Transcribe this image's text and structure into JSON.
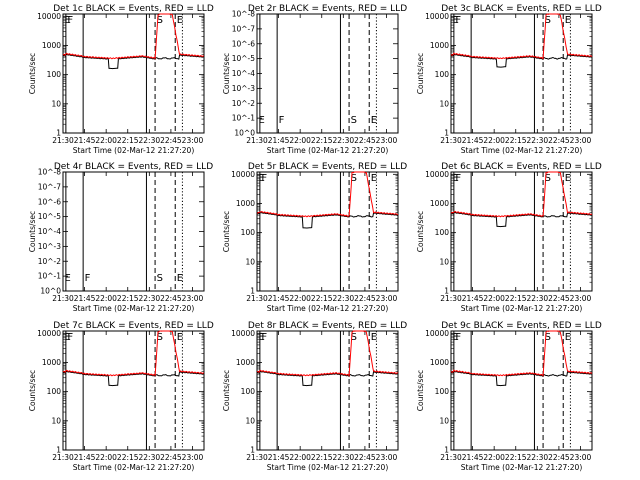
{
  "colors": {
    "events": "#000000",
    "lld": "#ff0000",
    "background": "#ffffff"
  },
  "chart_data": [
    {
      "id": "1",
      "type": "line",
      "title": "Det 1c BLACK = Events, RED = LLD",
      "xlabel": "Start Time (02-Mar-12 21:27:20)",
      "ylabel": "Counts/sec",
      "yscale": "log",
      "xlim": [
        "21:30",
        "23:08"
      ],
      "ylim": [
        1,
        12000
      ],
      "xticks": [
        "21:30",
        "21:45",
        "22:00",
        "22:15",
        "22:30",
        "22:45",
        "23:00"
      ],
      "yticks": [
        "1",
        "10",
        "100",
        "1000",
        "10000"
      ],
      "markers": [
        {
          "time": "21:30",
          "style": "dotted",
          "label": "E"
        },
        {
          "time": "21:32",
          "style": "solid",
          "label": "F"
        },
        {
          "time": "21:44",
          "style": "solid",
          "label": ""
        },
        {
          "time": "22:28",
          "style": "solid",
          "label": ""
        },
        {
          "time": "22:34",
          "style": "dashed",
          "label": "S"
        },
        {
          "time": "22:48",
          "style": "dashed",
          "label": "E"
        },
        {
          "time": "22:53",
          "style": "dotted",
          "label": ""
        }
      ],
      "dip": [
        0.75,
        1.8,
        0.35
      ]
    },
    {
      "id": "2",
      "type": "line",
      "title": "Det 2r BLACK = Events, RED = LLD",
      "xlabel": "Start Time (02-Mar-12 21:27:20)",
      "ylabel": "Counts/sec",
      "yscale": "log",
      "xlim": [
        "21:30",
        "23:08"
      ],
      "ylim": [
        1,
        1e-08
      ],
      "xticks": [
        "21:30",
        "21:45",
        "22:00",
        "22:15",
        "22:30",
        "22:45",
        "23:00"
      ],
      "yticks": [
        "10^0",
        "10^-1",
        "10^-2",
        "10^-3",
        "10^-4",
        "10^-5",
        "10^-6",
        "10^-7",
        "10^-8"
      ],
      "markers": [
        {
          "time": "21:30",
          "style": "dotted",
          "label": "E"
        },
        {
          "time": "21:32",
          "style": "solid",
          "label": ""
        },
        {
          "time": "21:44",
          "style": "solid",
          "label": "F"
        },
        {
          "time": "22:28",
          "style": "solid",
          "label": ""
        },
        {
          "time": "22:34",
          "style": "dashed",
          "label": "S"
        },
        {
          "time": "22:48",
          "style": "dashed",
          "label": "E"
        },
        {
          "time": "22:53",
          "style": "dotted",
          "label": ""
        }
      ]
    },
    {
      "id": "3",
      "type": "line",
      "title": "Det 3c BLACK = Events, RED = LLD",
      "xlabel": "Start Time (02-Mar-12 21:27:20)",
      "ylabel": "Counts/sec",
      "yscale": "log",
      "xlim": [
        "21:30",
        "23:08"
      ],
      "ylim": [
        1,
        12000
      ],
      "xticks": [
        "21:30",
        "21:45",
        "22:00",
        "22:15",
        "22:30",
        "22:45",
        "23:00"
      ],
      "yticks": [
        "1",
        "10",
        "100",
        "1000",
        "10000"
      ],
      "markers": [
        {
          "time": "21:30",
          "style": "dotted",
          "label": "E"
        },
        {
          "time": "21:32",
          "style": "solid",
          "label": "F"
        },
        {
          "time": "21:44",
          "style": "solid",
          "label": ""
        },
        {
          "time": "22:28",
          "style": "solid",
          "label": ""
        },
        {
          "time": "22:34",
          "style": "dashed",
          "label": "S"
        },
        {
          "time": "22:48",
          "style": "dashed",
          "label": "E"
        },
        {
          "time": "22:53",
          "style": "dotted",
          "label": ""
        }
      ],
      "dip": [
        0.55,
        1.6,
        0.3
      ]
    },
    {
      "id": "4",
      "type": "line",
      "title": "Det 4r BLACK = Events, RED = LLD",
      "xlabel": "Start Time (02-Mar-12 21:27:20)",
      "ylabel": "Counts/sec",
      "yscale": "log",
      "xlim": [
        "21:30",
        "23:08"
      ],
      "ylim": [
        1,
        1e-08
      ],
      "xticks": [
        "21:30",
        "21:45",
        "22:00",
        "22:15",
        "22:30",
        "22:45",
        "23:00"
      ],
      "yticks": [
        "10^0",
        "10^-1",
        "10^-2",
        "10^-3",
        "10^-4",
        "10^-5",
        "10^-6",
        "10^-7",
        "10^-8"
      ],
      "markers": [
        {
          "time": "21:30",
          "style": "dotted",
          "label": "E"
        },
        {
          "time": "21:32",
          "style": "solid",
          "label": ""
        },
        {
          "time": "21:44",
          "style": "solid",
          "label": "F"
        },
        {
          "time": "22:28",
          "style": "solid",
          "label": ""
        },
        {
          "time": "22:34",
          "style": "dashed",
          "label": "S"
        },
        {
          "time": "22:48",
          "style": "dashed",
          "label": "E"
        },
        {
          "time": "22:53",
          "style": "dotted",
          "label": ""
        }
      ]
    },
    {
      "id": "5",
      "type": "line",
      "title": "Det 5r BLACK = Events, RED = LLD",
      "xlabel": "Start Time (02-Mar-12 21:27:20)",
      "ylabel": "Counts/sec",
      "yscale": "log",
      "xlim": [
        "21:30",
        "23:08"
      ],
      "ylim": [
        1,
        12000
      ],
      "xticks": [
        "21:30",
        "21:45",
        "22:00",
        "22:15",
        "22:30",
        "22:45",
        "23:00"
      ],
      "yticks": [
        "1",
        "10",
        "100",
        "1000",
        "10000"
      ],
      "markers": [
        {
          "time": "21:30",
          "style": "dotted",
          "label": "E"
        },
        {
          "time": "21:32",
          "style": "solid",
          "label": "F"
        },
        {
          "time": "21:44",
          "style": "solid",
          "label": ""
        },
        {
          "time": "22:28",
          "style": "solid",
          "label": ""
        },
        {
          "time": "22:34",
          "style": "dashed",
          "label": "S"
        },
        {
          "time": "22:48",
          "style": "dashed",
          "label": "E"
        },
        {
          "time": "22:53",
          "style": "dotted",
          "label": ""
        }
      ],
      "dip": [
        0.7,
        1.7,
        0.4
      ]
    },
    {
      "id": "6",
      "type": "line",
      "title": "Det 6c BLACK = Events, RED = LLD",
      "xlabel": "Start Time (02-Mar-12 21:27:20)",
      "ylabel": "Counts/sec",
      "yscale": "log",
      "xlim": [
        "21:30",
        "23:08"
      ],
      "ylim": [
        1,
        12000
      ],
      "xticks": [
        "21:30",
        "21:45",
        "22:00",
        "22:15",
        "22:30",
        "22:45",
        "23:00"
      ],
      "yticks": [
        "1",
        "10",
        "100",
        "1000",
        "10000"
      ],
      "markers": [
        {
          "time": "21:30",
          "style": "dotted",
          "label": "E"
        },
        {
          "time": "21:32",
          "style": "solid",
          "label": "F"
        },
        {
          "time": "21:44",
          "style": "solid",
          "label": ""
        },
        {
          "time": "22:28",
          "style": "solid",
          "label": ""
        },
        {
          "time": "22:34",
          "style": "dashed",
          "label": "S"
        },
        {
          "time": "22:48",
          "style": "dashed",
          "label": "E"
        },
        {
          "time": "22:53",
          "style": "dotted",
          "label": ""
        }
      ],
      "dip": [
        0.75,
        1.8,
        0.35
      ]
    },
    {
      "id": "7",
      "type": "line",
      "title": "Det 7c BLACK = Events, RED = LLD",
      "xlabel": "Start Time (02-Mar-12 21:27:20)",
      "ylabel": "Counts/sec",
      "yscale": "log",
      "xlim": [
        "21:30",
        "23:08"
      ],
      "ylim": [
        1,
        12000
      ],
      "xticks": [
        "21:30",
        "21:45",
        "22:00",
        "22:15",
        "22:30",
        "22:45",
        "23:00"
      ],
      "yticks": [
        "1",
        "10",
        "100",
        "1000",
        "10000"
      ],
      "markers": [
        {
          "time": "21:30",
          "style": "dotted",
          "label": "E"
        },
        {
          "time": "21:32",
          "style": "solid",
          "label": "F"
        },
        {
          "time": "21:44",
          "style": "solid",
          "label": ""
        },
        {
          "time": "22:28",
          "style": "solid",
          "label": ""
        },
        {
          "time": "22:34",
          "style": "dashed",
          "label": "S"
        },
        {
          "time": "22:48",
          "style": "dashed",
          "label": "E"
        },
        {
          "time": "22:53",
          "style": "dotted",
          "label": ""
        }
      ],
      "dip": [
        0.75,
        1.8,
        0.35
      ]
    },
    {
      "id": "8",
      "type": "line",
      "title": "Det 8r BLACK = Events, RED = LLD",
      "xlabel": "Start Time (02-Mar-12 21:27:20)",
      "ylabel": "Counts/sec",
      "yscale": "log",
      "xlim": [
        "21:30",
        "23:08"
      ],
      "ylim": [
        1,
        12000
      ],
      "xticks": [
        "21:30",
        "21:45",
        "22:00",
        "22:15",
        "22:30",
        "22:45",
        "23:00"
      ],
      "yticks": [
        "1",
        "10",
        "100",
        "1000",
        "10000"
      ],
      "markers": [
        {
          "time": "21:30",
          "style": "dotted",
          "label": "E"
        },
        {
          "time": "21:32",
          "style": "solid",
          "label": "F"
        },
        {
          "time": "21:44",
          "style": "solid",
          "label": ""
        },
        {
          "time": "22:28",
          "style": "solid",
          "label": ""
        },
        {
          "time": "22:34",
          "style": "dashed",
          "label": "S"
        },
        {
          "time": "22:48",
          "style": "dashed",
          "label": "E"
        },
        {
          "time": "22:53",
          "style": "dotted",
          "label": ""
        }
      ],
      "dip": [
        0.75,
        1.8,
        0.35
      ]
    },
    {
      "id": "9",
      "type": "line",
      "title": "Det 9c BLACK = Events, RED = LLD",
      "xlabel": "Start Time (02-Mar-12 21:27:20)",
      "ylabel": "Counts/sec",
      "yscale": "log",
      "xlim": [
        "21:30",
        "23:08"
      ],
      "ylim": [
        1,
        12000
      ],
      "xticks": [
        "21:30",
        "21:45",
        "22:00",
        "22:15",
        "22:30",
        "22:45",
        "23:00"
      ],
      "yticks": [
        "1",
        "10",
        "100",
        "1000",
        "10000"
      ],
      "markers": [
        {
          "time": "21:30",
          "style": "dotted",
          "label": "E"
        },
        {
          "time": "21:32",
          "style": "solid",
          "label": "F"
        },
        {
          "time": "21:44",
          "style": "solid",
          "label": ""
        },
        {
          "time": "22:28",
          "style": "solid",
          "label": ""
        },
        {
          "time": "22:34",
          "style": "dashed",
          "label": "S"
        },
        {
          "time": "22:48",
          "style": "dashed",
          "label": "E"
        },
        {
          "time": "22:53",
          "style": "dotted",
          "label": ""
        }
      ],
      "dip": [
        0.75,
        1.8,
        0.35
      ]
    }
  ]
}
